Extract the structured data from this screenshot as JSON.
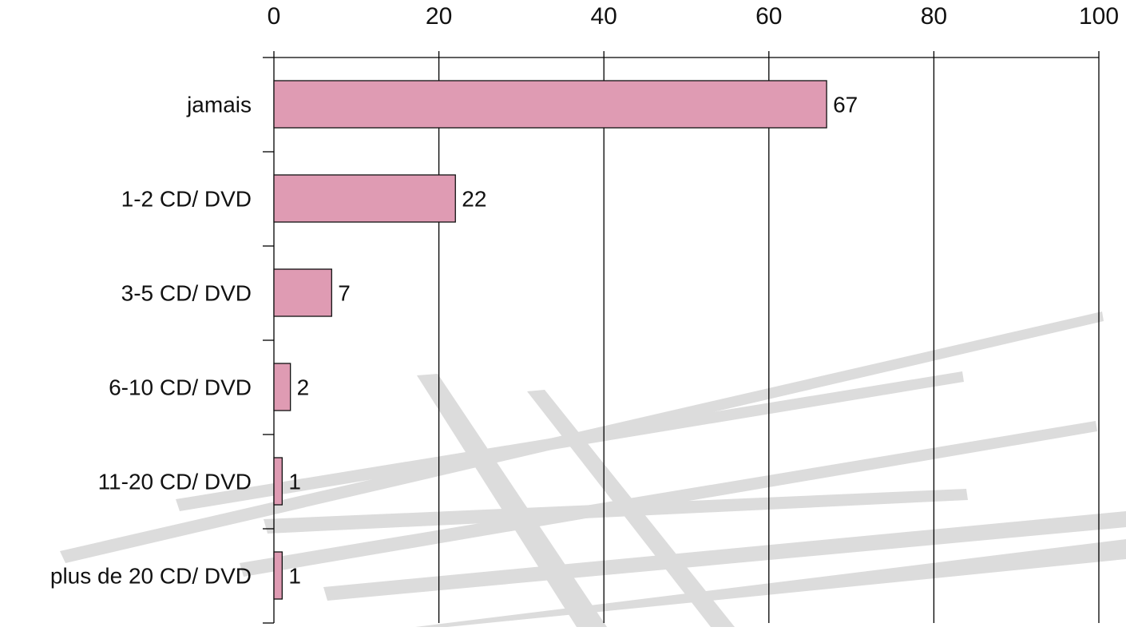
{
  "colors": {
    "bar_fill": "#df9bb3",
    "bar_stroke": "#111111",
    "gridline": "#000000",
    "watermark": "#dcdcdc"
  },
  "chart_data": {
    "type": "bar",
    "orientation": "horizontal",
    "categories": [
      "jamais",
      "1-2 CD/ DVD",
      "3-5 CD/ DVD",
      "6-10 CD/ DVD",
      "11-20 CD/ DVD",
      "plus de 20 CD/ DVD"
    ],
    "values": [
      67,
      22,
      7,
      2,
      1,
      1
    ],
    "data_labels": [
      "67",
      "22",
      "7",
      "2",
      "1",
      "1"
    ],
    "x_ticks": [
      0,
      20,
      40,
      60,
      80,
      100
    ],
    "x_tick_labels": [
      "0",
      "20",
      "40",
      "60",
      "80",
      "100"
    ],
    "xlim": [
      0,
      100
    ],
    "x_axis_position": "top",
    "grid": true,
    "legend": "none"
  }
}
